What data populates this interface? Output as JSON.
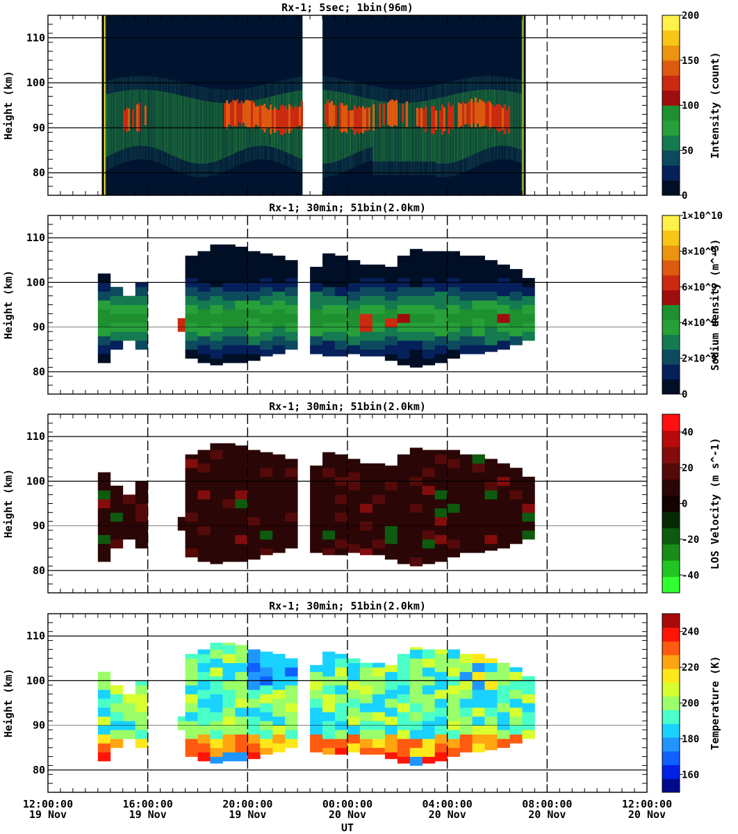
{
  "figure": {
    "x_axis_label": "UT",
    "x_ticks": [
      {
        "time": "12:00:00",
        "date": "19 Nov"
      },
      {
        "time": "16:00:00",
        "date": "19 Nov"
      },
      {
        "time": "20:00:00",
        "date": "19 Nov"
      },
      {
        "time": "00:00:00",
        "date": "20 Nov"
      },
      {
        "time": "04:00:00",
        "date": "20 Nov"
      },
      {
        "time": "08:00:00",
        "date": "20 Nov"
      },
      {
        "time": "12:00:00",
        "date": "20 Nov"
      }
    ]
  },
  "chart_data": [
    {
      "type": "heatmap",
      "title": "Rx-1;  5sec; 1bin(96m)",
      "xlabel": "UT",
      "ylabel": "Height (km)",
      "xlim": [
        "2023-11-19T12:00:00",
        "2023-11-20T12:00:00"
      ],
      "ylim": [
        75,
        115
      ],
      "yticks": [
        80,
        90,
        100,
        110
      ],
      "grid_lines_km": [
        80,
        90,
        100,
        110
      ],
      "colorbar": {
        "label": "Intensity (count)",
        "ticks": [
          "0",
          "50",
          "100",
          "150",
          "200"
        ],
        "range": [
          0,
          200
        ],
        "colors": [
          "#000f25",
          "#05205a",
          "#0d4a5e",
          "#157a50",
          "#27a03a",
          "#1e9030",
          "#a00d0d",
          "#cc2a10",
          "#dd5a10",
          "#ec9310",
          "#f7c515",
          "#fff04a"
        ]
      },
      "observation_start_hour": 14.2,
      "observation_end_hour": 31.1,
      "data_gap_hours": [
        22.2,
        23.0
      ],
      "markers": [
        {
          "hour": 14.2,
          "style": "solid"
        },
        {
          "hour": 31.1,
          "style": "solid"
        },
        {
          "hour": 32.0,
          "style": "dashed"
        }
      ],
      "layer": {
        "description_hours": [
          14.3,
          30.8
        ],
        "peak_height_km": 92,
        "max_count": 200
      }
    },
    {
      "type": "heatmap",
      "title": "Rx-1; 30min; 51bin(2.0km)",
      "xlabel": "UT",
      "ylabel": "Height (km)",
      "ylim": [
        75,
        115
      ],
      "yticks": [
        80,
        90,
        100,
        110
      ],
      "grid_lines_km": [
        80,
        90,
        100,
        110
      ],
      "colorbar": {
        "label": "Sodium density (m^-3)",
        "ticks": [
          "0",
          "2×10^9",
          "4×10^9",
          "6×10^9",
          "8×10^9",
          "1×10^10"
        ],
        "range": [
          0,
          10000000000
        ],
        "colors": [
          "#000f25",
          "#05205a",
          "#0d4a5e",
          "#157a50",
          "#27a03a",
          "#1e9030",
          "#a00d0d",
          "#cc2a10",
          "#dd5a10",
          "#ec9310",
          "#f7c515",
          "#fff04a"
        ]
      }
    },
    {
      "type": "heatmap",
      "title": "Rx-1; 30min; 51bin(2.0km)",
      "xlabel": "UT",
      "ylabel": "Height (km)",
      "ylim": [
        75,
        115
      ],
      "yticks": [
        80,
        90,
        100,
        110
      ],
      "grid_lines_km": [
        80,
        90,
        100,
        110
      ],
      "colorbar": {
        "label": "LOS Velocity (m s^-1)",
        "ticks": [
          "-40",
          "-20",
          "0",
          "20",
          "40"
        ],
        "range": [
          -50,
          50
        ],
        "colors": [
          "#30ff30",
          "#22c622",
          "#188e18",
          "#0e5a0e",
          "#042a04",
          "#120202",
          "#2b0606",
          "#550a0a",
          "#840c0c",
          "#b90a0a",
          "#ff1010"
        ]
      }
    },
    {
      "type": "heatmap",
      "title": "Rx-1; 30min; 51bin(2.0km)",
      "xlabel": "UT",
      "ylabel": "Height (km)",
      "ylim": [
        75,
        115
      ],
      "yticks": [
        80,
        90,
        100,
        110
      ],
      "grid_lines_km": [
        80,
        90,
        100,
        110
      ],
      "colorbar": {
        "label": "Temperature (K)",
        "ticks": [
          "160",
          "180",
          "200",
          "220",
          "240"
        ],
        "range": [
          150,
          250
        ],
        "colors": [
          "#000a8c",
          "#0022e6",
          "#1060ff",
          "#1f96ff",
          "#1ad2ff",
          "#4affc8",
          "#9bff6a",
          "#d8ff30",
          "#ffe81a",
          "#ffa512",
          "#ff5a10",
          "#ff1508",
          "#a80a0a"
        ]
      }
    }
  ]
}
